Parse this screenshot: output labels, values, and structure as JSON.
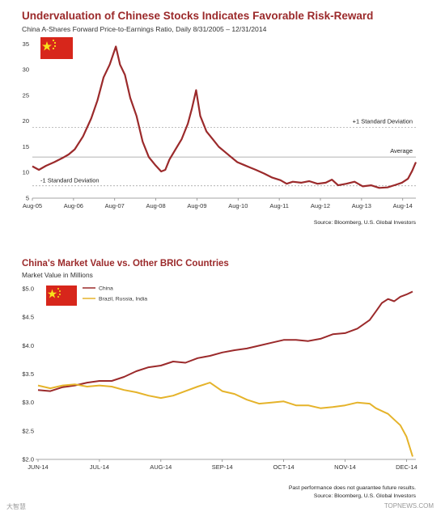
{
  "chart_data": [
    {
      "type": "line",
      "title": "Undervaluation of Chinese Stocks Indicates Favorable Risk-Reward",
      "subtitle": "China A-Shares Forward Price-to-Earnings Ratio, Daily 8/31/2005 – 12/31/2014",
      "source": "Source: Bloomberg, U.S. Global Investors",
      "flag": "china-flag-icon",
      "ylim": [
        5,
        36
      ],
      "yticks": [
        "5",
        "10",
        "15",
        "20",
        "25",
        "30",
        "35"
      ],
      "xticks": [
        "Aug-05",
        "Aug-06",
        "Aug-07",
        "Aug-08",
        "Aug-09",
        "Aug-10",
        "Aug-11",
        "Aug-12",
        "Aug-13",
        "Aug-14"
      ],
      "xrange": [
        2005.67,
        2014.99
      ],
      "reference_lines": [
        {
          "label": "+1 Standard Deviation",
          "value": 18.8
        },
        {
          "label": "Average",
          "value": 13.0
        },
        {
          "label": "-1 Standard Deviation",
          "value": 7.4
        }
      ],
      "series": [
        {
          "color": "#9b2a2b",
          "x": [
            2005.67,
            2005.83,
            2006.0,
            2006.2,
            2006.4,
            2006.55,
            2006.7,
            2006.9,
            2007.1,
            2007.25,
            2007.4,
            2007.55,
            2007.7,
            2007.8,
            2007.92,
            2008.05,
            2008.2,
            2008.35,
            2008.5,
            2008.65,
            2008.8,
            2008.9,
            2009.0,
            2009.15,
            2009.3,
            2009.45,
            2009.55,
            2009.65,
            2009.75,
            2009.9,
            2010.05,
            2010.2,
            2010.35,
            2010.5,
            2010.65,
            2010.8,
            2010.95,
            2011.1,
            2011.3,
            2011.5,
            2011.7,
            2011.85,
            2012.0,
            2012.2,
            2012.4,
            2012.6,
            2012.8,
            2012.95,
            2013.1,
            2013.3,
            2013.5,
            2013.7,
            2013.9,
            2014.1,
            2014.3,
            2014.5,
            2014.65,
            2014.8,
            2014.9,
            2014.99
          ],
          "values": [
            11.2,
            10.5,
            11.3,
            12.0,
            12.8,
            13.5,
            14.5,
            17.0,
            20.5,
            24.0,
            28.5,
            31.0,
            34.5,
            31.0,
            29.0,
            24.5,
            21.0,
            16.0,
            13.0,
            11.5,
            10.2,
            10.5,
            12.5,
            14.5,
            16.5,
            19.5,
            22.5,
            26.0,
            21.0,
            18.0,
            16.5,
            15.0,
            14.0,
            13.0,
            12.0,
            11.5,
            11.0,
            10.5,
            9.8,
            9.0,
            8.5,
            7.8,
            8.2,
            8.0,
            8.3,
            7.8,
            8.0,
            8.6,
            7.5,
            7.8,
            8.2,
            7.3,
            7.5,
            7.0,
            7.1,
            7.6,
            8.0,
            8.8,
            10.3,
            12.0
          ]
        }
      ]
    },
    {
      "type": "line",
      "title": "China's Market Value vs. Other BRIC Countries",
      "subtitle": "Market Value in Millions",
      "source": "Source: Bloomberg, U.S. Global Investors",
      "footnote": "Past performance does not guarantee future results.",
      "flag": "china-flag-icon",
      "ylim": [
        2.0,
        5.1
      ],
      "yticks": [
        "$2.0",
        "$2.5",
        "$3.0",
        "$3.5",
        "$4.0",
        "$4.5",
        "$5.0"
      ],
      "ytick_values": [
        2.0,
        2.5,
        3.0,
        3.5,
        4.0,
        4.5,
        5.0
      ],
      "xticks": [
        "JUN-14",
        "JUL-14",
        "AUG-14",
        "SEP-14",
        "OCT-14",
        "NOV-14",
        "DEC-14"
      ],
      "xrange": [
        0,
        6.1
      ],
      "series": [
        {
          "name": "China",
          "color": "#9b2a2b",
          "x": [
            0,
            0.2,
            0.4,
            0.6,
            0.8,
            1.0,
            1.2,
            1.4,
            1.6,
            1.8,
            2.0,
            2.2,
            2.4,
            2.6,
            2.8,
            3.0,
            3.2,
            3.4,
            3.6,
            3.8,
            4.0,
            4.2,
            4.4,
            4.6,
            4.8,
            5.0,
            5.2,
            5.4,
            5.5,
            5.6,
            5.7,
            5.8,
            5.9,
            6.0,
            6.1
          ],
          "values": [
            3.22,
            3.2,
            3.27,
            3.3,
            3.35,
            3.38,
            3.38,
            3.45,
            3.55,
            3.62,
            3.65,
            3.72,
            3.7,
            3.78,
            3.82,
            3.88,
            3.92,
            3.95,
            4.0,
            4.05,
            4.1,
            4.1,
            4.08,
            4.12,
            4.2,
            4.22,
            4.3,
            4.45,
            4.6,
            4.75,
            4.82,
            4.78,
            4.86,
            4.9,
            4.95
          ]
        },
        {
          "name": "Brazil, Russia, India",
          "color": "#e5b32a",
          "x": [
            0,
            0.2,
            0.4,
            0.6,
            0.8,
            1.0,
            1.2,
            1.4,
            1.6,
            1.8,
            2.0,
            2.2,
            2.4,
            2.6,
            2.8,
            3.0,
            3.2,
            3.4,
            3.6,
            3.8,
            4.0,
            4.2,
            4.4,
            4.6,
            4.8,
            5.0,
            5.2,
            5.4,
            5.5,
            5.6,
            5.7,
            5.8,
            5.9,
            6.0,
            6.1
          ],
          "values": [
            3.3,
            3.25,
            3.3,
            3.32,
            3.28,
            3.3,
            3.28,
            3.22,
            3.18,
            3.12,
            3.08,
            3.12,
            3.2,
            3.28,
            3.35,
            3.2,
            3.15,
            3.05,
            2.98,
            3.0,
            3.02,
            2.95,
            2.95,
            2.9,
            2.92,
            2.95,
            3.0,
            2.98,
            2.9,
            2.85,
            2.8,
            2.7,
            2.6,
            2.4,
            2.05
          ]
        }
      ]
    }
  ],
  "watermark_left": "大智慧",
  "watermark_right": "TOPNEWS.COM"
}
